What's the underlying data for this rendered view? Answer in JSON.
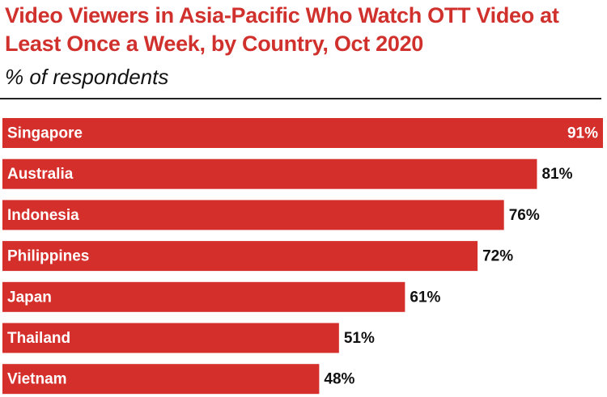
{
  "chart_data": {
    "type": "bar",
    "orientation": "horizontal",
    "title": "Video Viewers in Asia-Pacific Who Watch OTT Video at Least Once a Week, by Country, Oct 2020",
    "subtitle": "% of respondents",
    "categories": [
      "Singapore",
      "Australia",
      "Indonesia",
      "Philippines",
      "Japan",
      "Thailand",
      "Vietnam"
    ],
    "values": [
      91,
      81,
      76,
      72,
      61,
      51,
      48
    ],
    "value_labels": [
      "91%",
      "81%",
      "76%",
      "72%",
      "61%",
      "51%",
      "48%"
    ],
    "color": "#d52f2b"
  }
}
